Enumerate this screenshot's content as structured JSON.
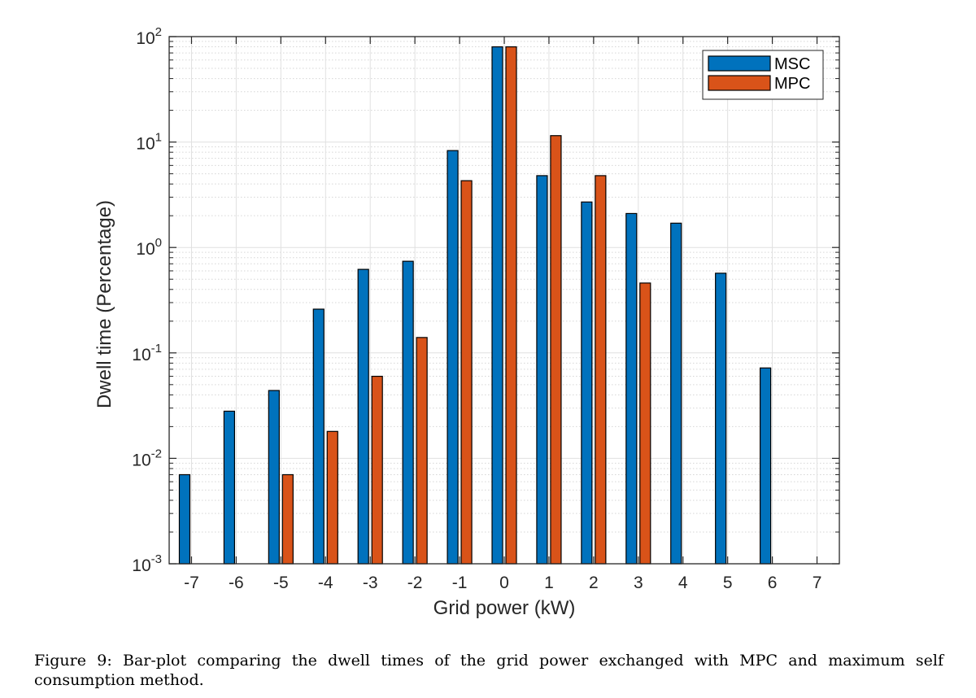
{
  "chart_data": {
    "type": "bar",
    "xlabel": "Grid power (kW)",
    "ylabel": "Dwell time (Percentage)",
    "y_scale": "log",
    "ylim": [
      0.001,
      100
    ],
    "xlim": [
      -7.5,
      7.5
    ],
    "x_ticks": [
      -7,
      -6,
      -5,
      -4,
      -3,
      -2,
      -1,
      0,
      1,
      2,
      3,
      4,
      5,
      6,
      7
    ],
    "y_ticks": [
      {
        "value": 0.001,
        "base": "10",
        "exp": "-3"
      },
      {
        "value": 0.01,
        "base": "10",
        "exp": "-2"
      },
      {
        "value": 0.1,
        "base": "10",
        "exp": "-1"
      },
      {
        "value": 1,
        "base": "10",
        "exp": "0"
      },
      {
        "value": 10,
        "base": "10",
        "exp": "1"
      },
      {
        "value": 100,
        "base": "10",
        "exp": "2"
      }
    ],
    "grid": true,
    "minor_grid": true,
    "legend_position": "top-right",
    "categories": [
      -7,
      -6,
      -5,
      -4,
      -3,
      -2,
      -1,
      0,
      1,
      2,
      3,
      4,
      5,
      6,
      7
    ],
    "series": [
      {
        "name": "MSC",
        "color": "#0072BD",
        "values": [
          0.007,
          0.028,
          0.044,
          0.26,
          0.62,
          0.74,
          8.3,
          80,
          4.8,
          2.7,
          2.1,
          1.7,
          0.57,
          0.072,
          null
        ]
      },
      {
        "name": "MPC",
        "color": "#D95319",
        "values": [
          null,
          null,
          0.007,
          0.018,
          0.06,
          0.14,
          4.3,
          80,
          11.5,
          4.8,
          0.46,
          null,
          null,
          null,
          null
        ]
      }
    ]
  },
  "caption": "Figure 9: Bar-plot comparing the dwell times of the grid power exchanged with MPC and maximum self consumption method."
}
